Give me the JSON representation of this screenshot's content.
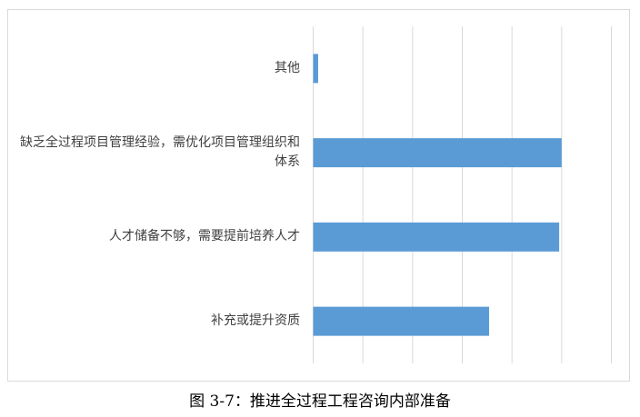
{
  "chart_data": {
    "type": "bar",
    "orientation": "horizontal",
    "categories": [
      "其他",
      "缺乏全过程项目管理经验，需优化项目管理组织和体系",
      "人才储备不够，需要提前培养人才",
      "补充或提升资质"
    ],
    "values": [
      0.1,
      5.0,
      4.95,
      3.54
    ],
    "xlim": [
      0,
      6
    ],
    "grid": true,
    "tick_labels_shown": false,
    "bar_color": "#5b9bd5",
    "grid_color": "#d9d9d9"
  },
  "caption": "图 3-7：推进全过程工程咨询内部准备"
}
